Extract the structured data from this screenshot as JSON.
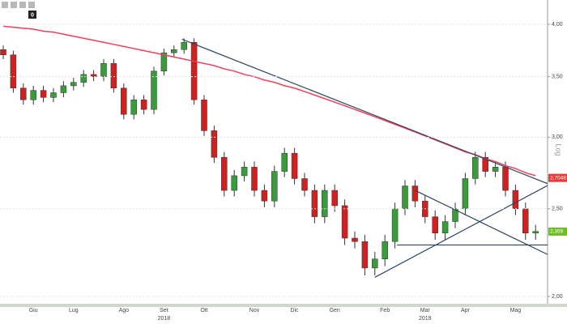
{
  "toolbar": {
    "count": "0"
  },
  "chart_data": {
    "type": "candlestick",
    "log_scale": true,
    "axis_label": "Log",
    "ylim": [
      1.963,
      4.255
    ],
    "yticks": [
      {
        "value": 2,
        "label": "2,00"
      },
      {
        "value": 2.5,
        "label": "2,50"
      },
      {
        "value": 3,
        "label": "3,00"
      },
      {
        "value": 3.5,
        "label": "3,50"
      },
      {
        "value": 4,
        "label": "4,00"
      }
    ],
    "grid": true,
    "up_color": "#3a9b3a",
    "down_color": "#d02020",
    "categories": [
      null,
      null,
      null,
      "Giu",
      null,
      null,
      null,
      "Lug",
      null,
      null,
      null,
      null,
      "Ago",
      null,
      null,
      null,
      "Set",
      null,
      null,
      null,
      "Ott",
      null,
      null,
      null,
      null,
      "Nov",
      null,
      null,
      null,
      "Dic",
      null,
      null,
      null,
      "Gen",
      null,
      null,
      null,
      null,
      "Feb",
      null,
      null,
      null,
      "Mar",
      null,
      null,
      null,
      "Apr",
      null,
      null,
      null,
      null,
      "Mag",
      null,
      null
    ],
    "years": [
      null,
      null,
      null,
      null,
      null,
      null,
      null,
      null,
      null,
      null,
      null,
      null,
      null,
      null,
      null,
      null,
      "2018",
      null,
      null,
      null,
      null,
      null,
      null,
      null,
      null,
      null,
      null,
      null,
      null,
      null,
      null,
      null,
      null,
      null,
      null,
      null,
      null,
      null,
      null,
      null,
      null,
      null,
      "2019",
      null,
      null,
      null,
      null,
      null,
      null,
      null,
      null,
      null,
      null,
      null
    ],
    "candles": {
      "open": [
        3.75,
        3.7,
        3.4,
        3.3,
        3.38,
        3.32,
        3.36,
        3.42,
        3.45,
        3.52,
        3.5,
        3.62,
        3.4,
        3.18,
        3.3,
        3.22,
        3.55,
        3.72,
        3.75,
        3.82,
        3.3,
        3.05,
        2.85,
        2.62,
        2.72,
        2.78,
        2.62,
        2.55,
        2.75,
        2.88,
        2.7,
        2.62,
        2.45,
        2.62,
        2.52,
        2.32,
        2.3,
        2.15,
        2.2,
        2.3,
        2.5,
        2.65,
        2.55,
        2.45,
        2.35,
        2.42,
        2.5,
        2.7,
        2.85,
        2.75,
        2.78,
        2.62,
        2.5,
        2.35
      ],
      "high": [
        3.79,
        3.74,
        3.44,
        3.42,
        3.42,
        3.4,
        3.46,
        3.49,
        3.56,
        3.56,
        3.66,
        3.66,
        3.44,
        3.34,
        3.34,
        3.59,
        3.76,
        3.79,
        3.86,
        3.86,
        3.34,
        3.09,
        2.89,
        2.76,
        2.82,
        2.82,
        2.66,
        2.79,
        2.92,
        2.92,
        2.74,
        2.66,
        2.66,
        2.66,
        2.56,
        2.36,
        2.34,
        2.24,
        2.34,
        2.54,
        2.69,
        2.69,
        2.59,
        2.49,
        2.46,
        2.54,
        2.74,
        2.89,
        2.89,
        2.82,
        2.82,
        2.66,
        2.54,
        2.4
      ],
      "low": [
        3.66,
        3.36,
        3.26,
        3.26,
        3.28,
        3.28,
        3.32,
        3.38,
        3.41,
        3.46,
        3.46,
        3.36,
        3.14,
        3.14,
        3.18,
        3.18,
        3.51,
        3.68,
        3.71,
        3.26,
        3.01,
        2.81,
        2.58,
        2.58,
        2.68,
        2.58,
        2.51,
        2.51,
        2.71,
        2.66,
        2.58,
        2.41,
        2.41,
        2.48,
        2.28,
        2.26,
        2.11,
        2.11,
        2.16,
        2.26,
        2.46,
        2.51,
        2.41,
        2.31,
        2.31,
        2.38,
        2.46,
        2.66,
        2.71,
        2.71,
        2.58,
        2.46,
        2.31,
        2.31
      ],
      "close": [
        3.7,
        3.4,
        3.3,
        3.38,
        3.32,
        3.36,
        3.42,
        3.45,
        3.52,
        3.5,
        3.62,
        3.4,
        3.18,
        3.3,
        3.22,
        3.55,
        3.72,
        3.75,
        3.82,
        3.3,
        3.05,
        2.85,
        2.62,
        2.72,
        2.78,
        2.62,
        2.55,
        2.75,
        2.88,
        2.7,
        2.62,
        2.45,
        2.62,
        2.52,
        2.32,
        2.3,
        2.15,
        2.2,
        2.3,
        2.5,
        2.65,
        2.55,
        2.45,
        2.35,
        2.42,
        2.5,
        2.7,
        2.85,
        2.75,
        2.78,
        2.62,
        2.5,
        2.35,
        2.36
      ]
    },
    "moving_average": {
      "color": "#f0405a",
      "values": [
        3.98,
        3.97,
        3.96,
        3.95,
        3.93,
        3.92,
        3.9,
        3.88,
        3.86,
        3.84,
        3.82,
        3.8,
        3.78,
        3.76,
        3.74,
        3.72,
        3.7,
        3.68,
        3.66,
        3.64,
        3.62,
        3.6,
        3.57,
        3.55,
        3.52,
        3.5,
        3.47,
        3.45,
        3.42,
        3.4,
        3.37,
        3.34,
        3.31,
        3.28,
        3.25,
        3.22,
        3.19,
        3.16,
        3.13,
        3.1,
        3.07,
        3.04,
        3.01,
        2.98,
        2.95,
        2.92,
        2.89,
        2.87,
        2.84,
        2.82,
        2.79,
        2.77,
        2.74,
        2.72
      ]
    },
    "trendlines": {
      "color": "#2d4560",
      "lines": [
        {
          "x": [
            17.8,
            54.4
          ],
          "y": [
            3.85,
            2.66
          ]
        },
        {
          "x": [
            37,
            54.4
          ],
          "y": [
            2.1,
            2.66
          ]
        },
        {
          "x": [
            41,
            54.4
          ],
          "y": [
            2.62,
            2.22
          ]
        },
        {
          "x": [
            39.2,
            54.4
          ],
          "y": [
            2.28,
            2.28
          ]
        }
      ]
    },
    "price_tags": [
      {
        "value": 2.7048,
        "label": "2,7048",
        "color": "#e83a3a"
      },
      {
        "value": 2.359,
        "label": "2,359",
        "color": "#6cc020"
      }
    ]
  }
}
